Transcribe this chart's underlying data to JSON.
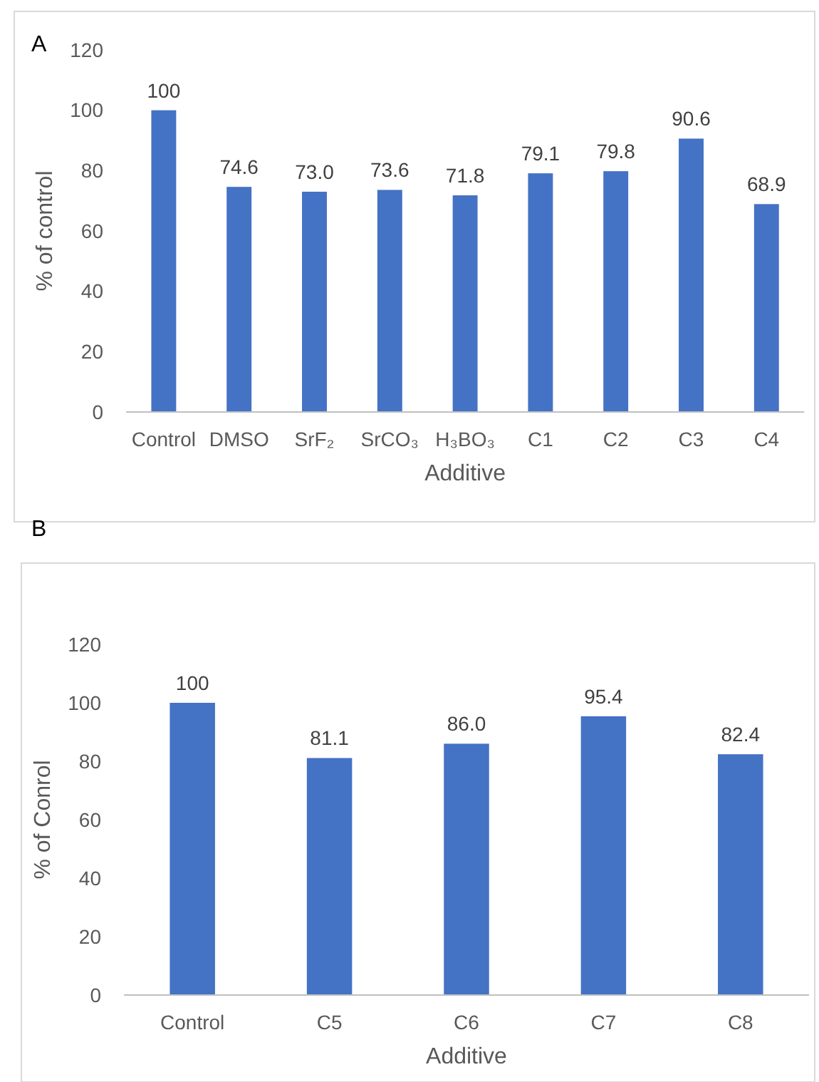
{
  "chart_data": [
    {
      "type": "bar",
      "title": "A",
      "xlabel": "Additive",
      "ylabel": "% of control",
      "categories": [
        "Control",
        "DMSO",
        "SrF₂",
        "SrCO₃",
        "H₃BO₃",
        "C1",
        "C2",
        "C3",
        "C4"
      ],
      "values": [
        100,
        74.6,
        73.0,
        73.6,
        71.8,
        79.1,
        79.8,
        90.6,
        68.9
      ],
      "value_labels": [
        "100",
        "74.6",
        "73.0",
        "73.6",
        "71.8",
        "79.1",
        "79.8",
        "90.6",
        "68.9"
      ],
      "color": "#4472c4",
      "ylim": [
        0,
        120
      ],
      "yticks": [
        0,
        20,
        40,
        60,
        80,
        100,
        120
      ]
    },
    {
      "type": "bar",
      "title": "B",
      "xlabel": "Additive",
      "ylabel": "% of Conrol",
      "categories": [
        "Control",
        "C5",
        "C6",
        "C7",
        "C8"
      ],
      "values": [
        100,
        81.1,
        86.0,
        95.4,
        82.4
      ],
      "value_labels": [
        "100",
        "81.1",
        "86.0",
        "95.4",
        "82.4"
      ],
      "color": "#4472c4",
      "ylim": [
        0,
        120
      ],
      "yticks": [
        0,
        20,
        40,
        60,
        80,
        100,
        120
      ]
    }
  ]
}
